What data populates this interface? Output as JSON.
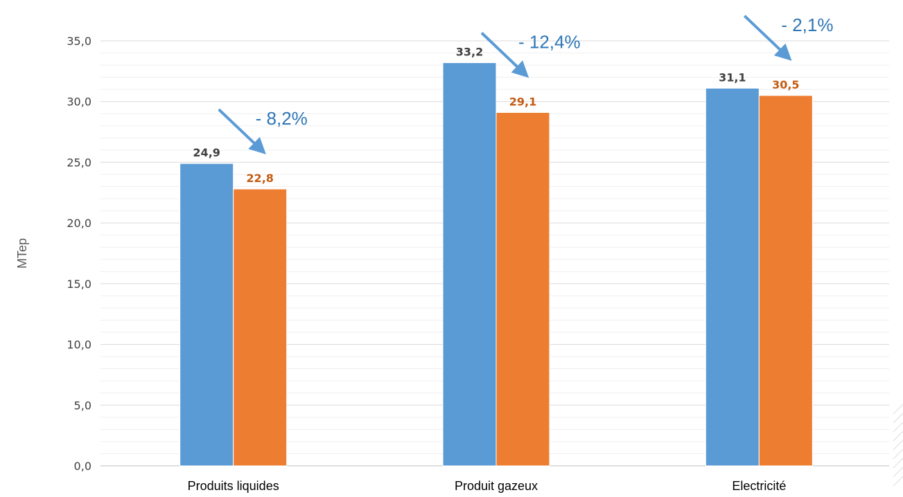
{
  "chart_data": {
    "type": "bar",
    "ylabel": "MTep",
    "xlabel": "",
    "title": "",
    "ylim": [
      0,
      35
    ],
    "yticks": [
      0,
      5,
      10,
      15,
      20,
      25,
      30,
      35
    ],
    "ytick_labels": [
      "0,0",
      "5,0",
      "10,0",
      "15,0",
      "20,0",
      "25,0",
      "30,0",
      "35,0"
    ],
    "grid": true,
    "legend": "none",
    "categories": [
      "Produits liquides",
      "Produit gazeux",
      "Electricité"
    ],
    "series": [
      {
        "values": [
          24.9,
          33.2,
          31.1
        ],
        "labels": [
          "24,9",
          "33,2",
          "31,1"
        ],
        "color": "#5B9BD5",
        "label_color": "#404040"
      },
      {
        "values": [
          22.8,
          29.1,
          30.5
        ],
        "labels": [
          "22,8",
          "29,1",
          "30,5"
        ],
        "color": "#ED7D31",
        "label_color": "#C55A11"
      }
    ],
    "annotations": [
      "- 8,2%",
      "- 12,4%",
      "- 2,1%"
    ],
    "annotation_color": "#2E75B6",
    "arrow_color": "#5B9BD5"
  }
}
